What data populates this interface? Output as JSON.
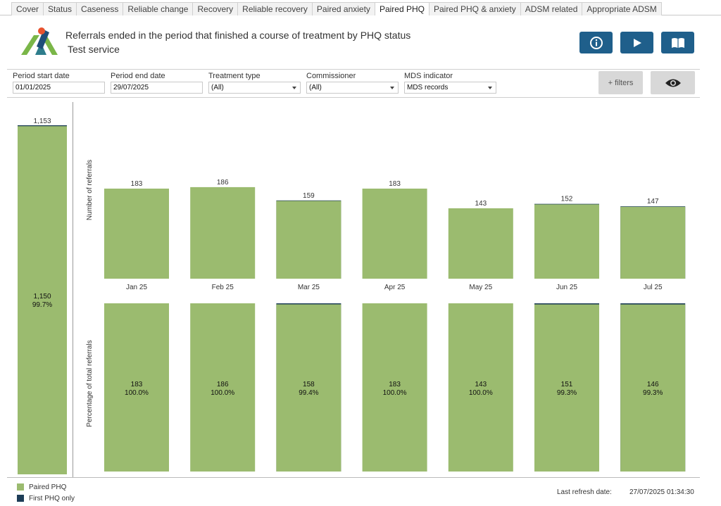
{
  "tabs": [
    "Cover",
    "Status",
    "Caseness",
    "Reliable change",
    "Recovery",
    "Reliable recovery",
    "Paired anxiety",
    "Paired PHQ",
    "Paired PHQ & anxiety",
    "ADSM related",
    "Appropriate ADSM"
  ],
  "active_tab": "Paired PHQ",
  "header": {
    "title": "Referrals ended in the period that finished a course of treatment by PHQ status",
    "subtitle": "Test service"
  },
  "filters": {
    "period_start": {
      "label": "Period start date",
      "value": "01/01/2025"
    },
    "period_end": {
      "label": "Period end date",
      "value": "29/07/2025"
    },
    "treatment_type": {
      "label": "Treatment type",
      "value": "(All)"
    },
    "commissioner": {
      "label": "Commissioner",
      "value": "(All)"
    },
    "mds_indicator": {
      "label": "MDS indicator",
      "value": "MDS records"
    },
    "more_filters_label": "+ filters"
  },
  "colors": {
    "paired": "#9bbb6f",
    "first_only": "#1d3d57",
    "button": "#1f5f8b"
  },
  "chart_data": {
    "type": "bar",
    "stacked": true,
    "series": [
      {
        "name": "Paired PHQ",
        "color": "#9bbb6f"
      },
      {
        "name": "First PHQ only",
        "color": "#1d3d57"
      }
    ],
    "total": {
      "total_label": "1,153",
      "paired_label": "1,150",
      "paired_pct": "99.7%",
      "paired": 1150,
      "total_value": 1153
    },
    "months": [
      {
        "label": "Jan 25",
        "total": 183,
        "paired": 183,
        "paired_pct": "100.0%"
      },
      {
        "label": "Feb 25",
        "total": 186,
        "paired": 186,
        "paired_pct": "100.0%"
      },
      {
        "label": "Mar 25",
        "total": 159,
        "paired": 158,
        "paired_pct": "99.4%"
      },
      {
        "label": "Apr 25",
        "total": 183,
        "paired": 183,
        "paired_pct": "100.0%"
      },
      {
        "label": "May 25",
        "total": 143,
        "paired": 143,
        "paired_pct": "100.0%"
      },
      {
        "label": "Jun 25",
        "total": 152,
        "paired": 151,
        "paired_pct": "99.3%"
      },
      {
        "label": "Jul 25",
        "total": 147,
        "paired": 146,
        "paired_pct": "99.3%"
      }
    ],
    "top_ylabel": "Number of referrals",
    "bottom_ylabel": "Percentage of total referrals"
  },
  "footer": {
    "refresh_label": "Last refresh date:",
    "refresh_value": "27/07/2025 01:34:30"
  }
}
